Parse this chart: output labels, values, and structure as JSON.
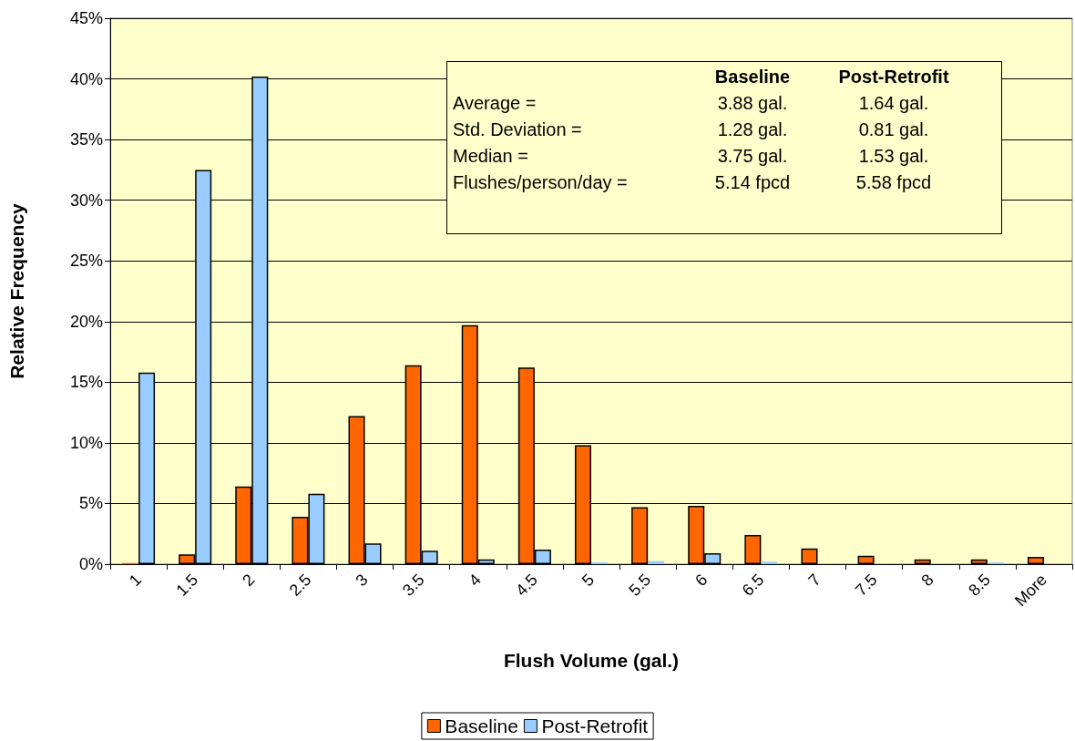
{
  "chart_data": {
    "type": "bar",
    "xlabel": "Flush Volume (gal.)",
    "ylabel": "Relative Frequency",
    "categories": [
      "1",
      "1.5",
      "2",
      "2.5",
      "3",
      "3.5",
      "4",
      "4.5",
      "5",
      "5.5",
      "6",
      "6.5",
      "7",
      "7.5",
      "8",
      "8.5",
      "More"
    ],
    "series": [
      {
        "name": "Baseline",
        "color": "#ff6600",
        "values": [
          0.1,
          0.8,
          6.4,
          3.9,
          12.2,
          16.4,
          19.7,
          16.2,
          9.8,
          4.7,
          4.8,
          2.4,
          1.3,
          0.7,
          0.4,
          0.4,
          0.6
        ]
      },
      {
        "name": "Post-Retrofit",
        "color": "#99ccff",
        "values": [
          15.8,
          32.5,
          40.2,
          5.8,
          1.7,
          1.1,
          0.4,
          1.2,
          0.15,
          0.25,
          0.9,
          0.2,
          0.05,
          0.05,
          0.05,
          0.15,
          0
        ]
      }
    ],
    "ylim": [
      0,
      45
    ],
    "yticks": [
      {
        "value": 0,
        "label": "0%"
      },
      {
        "value": 5,
        "label": "5%"
      },
      {
        "value": 10,
        "label": "10%"
      },
      {
        "value": 15,
        "label": "15%"
      },
      {
        "value": 20,
        "label": "20%"
      },
      {
        "value": 25,
        "label": "25%"
      },
      {
        "value": 30,
        "label": "30%"
      },
      {
        "value": 35,
        "label": "35%"
      },
      {
        "value": 40,
        "label": "40%"
      },
      {
        "value": 45,
        "label": "45%"
      }
    ],
    "grid": "y",
    "legend": "bottom",
    "annotations": [
      "Baseline",
      "Post-Retrofit",
      "Average =",
      "3.88 gal.",
      "1.64 gal.",
      "Std. Deviation =",
      "1.28 gal.",
      "0.81 gal.",
      "Median =",
      "3.75 gal.",
      "1.53 gal.",
      "Flushes/person/day =",
      "5.14 fpcd",
      "5.58 fpcd"
    ]
  }
}
